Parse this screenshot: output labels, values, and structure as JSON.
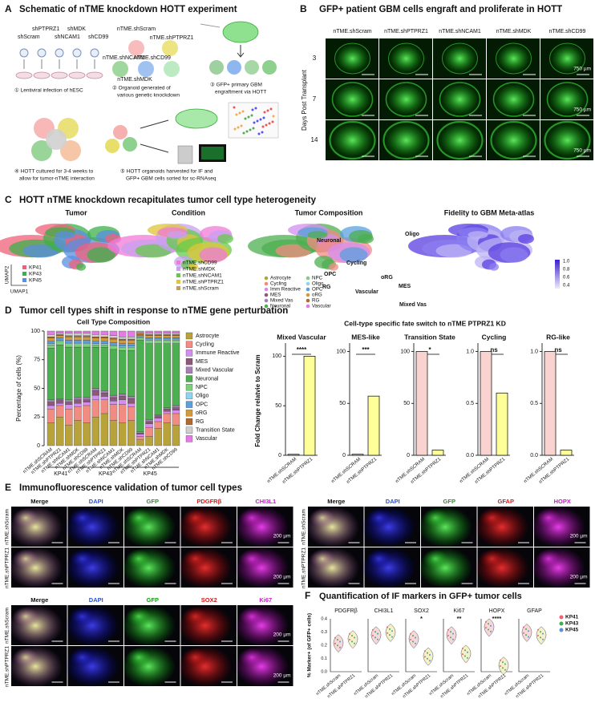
{
  "panel_a": {
    "letter": "A",
    "title": "Schematic of nTME knockdown HOTT experiment",
    "constructs": [
      "shPTPRZ1",
      "shMDK",
      "shScram",
      "shNCAM1",
      "shCD99"
    ],
    "organoids": [
      "nTME.shScram",
      "nTME.shPTPRZ1",
      "nTME.shNCAM1",
      "nTME.shCD99",
      "nTME.shMDK"
    ],
    "steps": [
      [
        "① Lentiviral infection of hESC"
      ],
      [
        "② Organoid generated of",
        "various genetic knockdown"
      ],
      [
        "③ GFP+ primary GBM",
        "engraftment via HOTT"
      ],
      [
        "④ HOTT cultured for 3-4 weeks to",
        "allow for tumor-nTME interaction"
      ],
      [
        "⑤ HOTT organoids harvested for IF and",
        "GFP+ GBM cells sorted for sc-RNAseq"
      ]
    ]
  },
  "panel_b": {
    "letter": "B",
    "title": "GFP+ patient GBM cells engraft and proliferate in HOTT",
    "columns": [
      "nTME.shScram",
      "nTME.shPTPRZ1",
      "nTME.shNCAM1",
      "nTME.shMDK",
      "nTME.shCD99"
    ],
    "rows": [
      "3",
      "7",
      "14"
    ],
    "row_axis_label": "Days Post Transplant",
    "scale_bar": "750 µm"
  },
  "panel_c": {
    "letter": "C",
    "title": "HOTT nTME knockdown recapitulates tumor cell type heterogeneity",
    "plots": [
      {
        "title": "Tumor",
        "legend": [
          "KP41",
          "KP43",
          "KP45"
        ],
        "colors": [
          "#f0607a",
          "#3cb04a",
          "#5a8ee0"
        ]
      },
      {
        "title": "Condition",
        "legend": [
          "nTME.shCD99",
          "nTME.shMDK",
          "nTME.shNCAM1",
          "nTME.shPTPRZ1",
          "nTME.shScram"
        ],
        "colors": [
          "#f07ad8",
          "#c8a0f0",
          "#66c94c",
          "#e0c43a",
          "#c0a060"
        ]
      },
      {
        "title": "Tumor Composition",
        "legend": [
          "Astrocyte",
          "Cycling",
          "Imm Reactive",
          "MES",
          "Mixed Vas",
          "Neuronal",
          "NPC",
          "Oligo",
          "OPC",
          "oRG",
          "RG",
          "Vascular"
        ],
        "colors": [
          "#b8a23a",
          "#f28b82",
          "#d48df0",
          "#8b5a7a",
          "#a77fb5",
          "#4caf50",
          "#7ccf7c",
          "#8fd3f0",
          "#5aa0e0",
          "#d49a3a",
          "#b06a30",
          "#e47ae4"
        ],
        "annotations": [
          "Neuronal",
          "Cycling",
          "OPC",
          "oRG",
          "RG",
          "MES",
          "Vascular",
          "Mixed Vas",
          "Oligo"
        ]
      },
      {
        "title": "Fidelity to GBM Meta-atlas",
        "colorbar": [
          "1.0",
          "0.8",
          "0.6",
          "0.4"
        ]
      }
    ],
    "axis_labels": [
      "UMAP2",
      "UMAP1"
    ]
  },
  "panel_d": {
    "letter": "D",
    "title": "Tumor cell types shift in response to nTME gene perturbation",
    "subtitle": "Cell-type specific fate switch to nTME PTPRZ1 KD"
  },
  "chart_data": [
    {
      "type": "stacked_bar",
      "title": "Cell Type Composition",
      "y_label": "Percentage of cells (%)",
      "categories": [
        "nTME.shSCRAM",
        "nTME.shPTPRZ1",
        "nTME.shNCAM1",
        "nTME.shMDK",
        "nTME.shCD99",
        "nTME.shSCRAM",
        "nTME.shPTPRZ1",
        "nTME.shNCAM1",
        "nTME.shMDK",
        "nTME.shCD99",
        "nTME.shSCRAM",
        "nTME.shPTPRZ1",
        "nTME.shNCAM1",
        "nTME.shMDK",
        "nTME.shCD99"
      ],
      "groups": [
        "KP41",
        "KP43",
        "KP45"
      ],
      "ylim": [
        0,
        100
      ],
      "yticks": [
        0,
        25,
        50,
        75,
        100
      ],
      "series": [
        {
          "name": "Astrocyte",
          "color": "#b8a23a",
          "values": [
            20,
            25,
            18,
            22,
            20,
            25,
            28,
            22,
            20,
            22,
            5,
            8,
            15,
            20,
            18
          ]
        },
        {
          "name": "Cycling",
          "color": "#f28b82",
          "values": [
            12,
            10,
            14,
            12,
            15,
            15,
            12,
            14,
            16,
            12,
            3,
            8,
            6,
            8,
            10
          ]
        },
        {
          "name": "Immune Reactive",
          "color": "#d48df0",
          "values": [
            3,
            2,
            4,
            3,
            3,
            4,
            3,
            3,
            4,
            3,
            2,
            3,
            3,
            2,
            3
          ]
        },
        {
          "name": "MES",
          "color": "#8b5a7a",
          "values": [
            3,
            3,
            2,
            3,
            2,
            4,
            3,
            3,
            3,
            4,
            1,
            2,
            2,
            2,
            2
          ]
        },
        {
          "name": "Mixed Vascular",
          "color": "#a77fb5",
          "values": [
            2,
            1,
            2,
            2,
            2,
            2,
            2,
            2,
            2,
            2,
            1,
            2,
            1,
            1,
            2
          ]
        },
        {
          "name": "Neuronal",
          "color": "#4caf50",
          "values": [
            45,
            47,
            46,
            44,
            44,
            36,
            38,
            40,
            38,
            40,
            80,
            66,
            62,
            56,
            54
          ]
        },
        {
          "name": "NPC",
          "color": "#7ccf7c",
          "values": [
            3,
            3,
            3,
            3,
            3,
            2,
            2,
            3,
            3,
            3,
            2,
            3,
            3,
            3,
            3
          ]
        },
        {
          "name": "Oligo",
          "color": "#8fd3f0",
          "values": [
            1,
            1,
            1,
            1,
            1,
            1,
            1,
            1,
            1,
            1,
            1,
            1,
            1,
            1,
            1
          ]
        },
        {
          "name": "OPC",
          "color": "#5aa0e0",
          "values": [
            2,
            2,
            2,
            2,
            2,
            2,
            2,
            2,
            2,
            2,
            1,
            1,
            1,
            1,
            1
          ]
        },
        {
          "name": "oRG",
          "color": "#d49a3a",
          "values": [
            3,
            2,
            3,
            3,
            3,
            3,
            3,
            3,
            3,
            3,
            1,
            2,
            2,
            2,
            2
          ]
        },
        {
          "name": "RG",
          "color": "#b06a30",
          "values": [
            1,
            1,
            1,
            1,
            1,
            1,
            1,
            1,
            1,
            1,
            1,
            1,
            1,
            1,
            1
          ]
        },
        {
          "name": "Transition State",
          "color": "#cfcfcf",
          "values": [
            2,
            1,
            2,
            2,
            2,
            2,
            2,
            2,
            2,
            2,
            1,
            1,
            1,
            1,
            1
          ]
        },
        {
          "name": "Vascular",
          "color": "#e47ae4",
          "values": [
            3,
            2,
            2,
            2,
            2,
            3,
            3,
            4,
            5,
            5,
            1,
            2,
            2,
            2,
            2
          ]
        }
      ]
    },
    {
      "type": "bar",
      "title": "Mixed Vascular",
      "y_label": "Fold Change relatvie to Scram",
      "significance": "****",
      "categories": [
        "nTME.shSCRAM",
        "nTME.shPTPRZ1"
      ],
      "values": [
        1,
        100
      ],
      "colors": [
        "#f9d3d0",
        "#ffff9a"
      ],
      "ylim": [
        0,
        110
      ],
      "yticks": [
        0,
        50,
        100
      ]
    },
    {
      "type": "bar",
      "title": "MES-like",
      "significance": "***",
      "categories": [
        "nTME.shSCRAM",
        "nTME.shPTPRZ1"
      ],
      "values": [
        1,
        57
      ],
      "colors": [
        "#f9d3d0",
        "#ffff9a"
      ],
      "ylim": [
        0,
        105
      ],
      "yticks": [
        0,
        50,
        100
      ]
    },
    {
      "type": "bar",
      "title": "Transition State",
      "significance": "*",
      "categories": [
        "nTME.shSCRAM",
        "nTME.shPTPRZ1"
      ],
      "values": [
        100,
        5
      ],
      "colors": [
        "#f9d3d0",
        "#ffff9a"
      ],
      "ylim": [
        0,
        105
      ],
      "yticks": [
        0,
        50,
        100
      ]
    },
    {
      "type": "bar",
      "title": "Cycling",
      "significance": "ns",
      "categories": [
        "nTME.shSCRAM",
        "nTME.shPTPRZ1"
      ],
      "values": [
        1,
        0.6
      ],
      "colors": [
        "#f9d3d0",
        "#ffff9a"
      ],
      "ylim": [
        0,
        1.05
      ],
      "yticks": [
        {
          "value": 0,
          "label": "0.0"
        },
        {
          "value": 0.5,
          "label": "0.5"
        },
        {
          "value": 1,
          "label": "1.0"
        }
      ]
    },
    {
      "type": "bar",
      "title": "RG-like",
      "significance": "ns",
      "categories": [
        "nTME.shSCRAM",
        "nTME.shPTPRZ1"
      ],
      "values": [
        1,
        0.05
      ],
      "colors": [
        "#f9d3d0",
        "#ffff9a"
      ],
      "ylim": [
        0,
        1.05
      ],
      "yticks": [
        {
          "value": 0,
          "label": "0.0"
        },
        {
          "value": 0.5,
          "label": "0.5"
        },
        {
          "value": 1,
          "label": "1.0"
        }
      ]
    }
  ],
  "panel_e": {
    "letter": "E",
    "title": "Immunofluorescence validation of tumor cell types",
    "blocks": [
      {
        "channels": [
          "Merge",
          "DAPI",
          "GFP",
          "PDGFRβ",
          "CHI3L1"
        ],
        "rows": [
          "nTME.shScram",
          "nTME.shPTPRZ1"
        ]
      },
      {
        "channels": [
          "Merge",
          "DAPI",
          "GFP",
          "GFAP",
          "HOPX"
        ],
        "rows": [
          "nTME.shScram",
          "nTME.shPTPRZ1"
        ]
      },
      {
        "channels": [
          "Merge",
          "DAPI",
          "GFP",
          "SOX2",
          "Ki67"
        ],
        "rows": [
          "nTME.shScram",
          "nTME.shPTPRZ1"
        ]
      }
    ],
    "scale_bar": "200 µm"
  },
  "panel_f": {
    "letter": "F",
    "title": "Quantification of IF markers in GFP+ tumor cells",
    "markers": [
      {
        "name": "PDGFRβ"
      },
      {
        "name": "CHI3L1"
      },
      {
        "name": "SOX2",
        "significance": "*"
      },
      {
        "name": "Ki67",
        "significance": "**"
      },
      {
        "name": "HOPX",
        "significance": "****"
      },
      {
        "name": "GFAP"
      }
    ],
    "conditions": [
      "nTME.shScram",
      "nTME.shPTPRZ1"
    ],
    "y_label": "% Marker+ (of GFP+ cells)",
    "yticks": [
      "0.4",
      "0.3",
      "0.2",
      "0.1",
      "0.0"
    ],
    "legend": [
      "KP41",
      "KP43",
      "KP45"
    ],
    "legend_colors": [
      "#f0607a",
      "#3cb04a",
      "#5a8ee0"
    ]
  }
}
